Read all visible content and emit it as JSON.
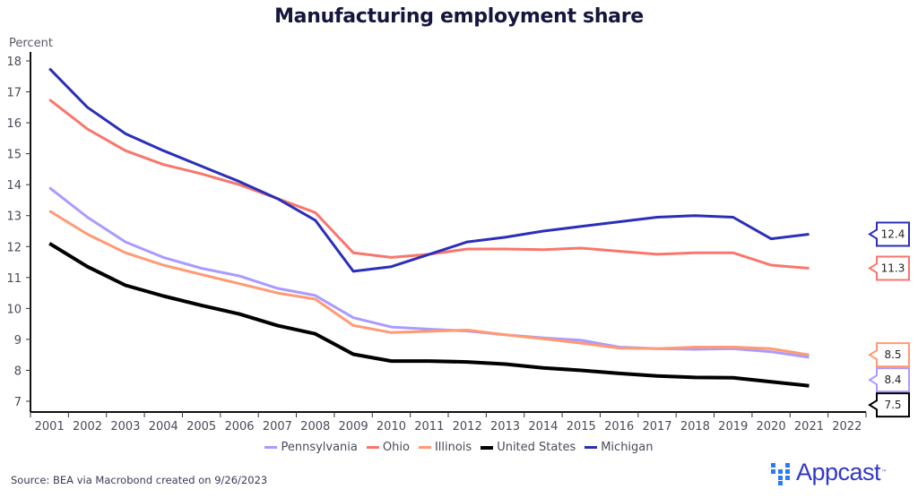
{
  "chart_data": {
    "type": "line",
    "title": "Manufacturing employment share",
    "ylabel": "Percent",
    "xlabel": "",
    "ylim": [
      7,
      18
    ],
    "yticks": [
      7,
      8,
      9,
      10,
      11,
      12,
      13,
      14,
      15,
      16,
      17,
      18
    ],
    "x_tick_labels": [
      "2001",
      "2002",
      "2003",
      "2004",
      "2005",
      "2006",
      "2007",
      "2008",
      "2009",
      "2010",
      "2011",
      "2012",
      "2013",
      "2014",
      "2015",
      "2016",
      "2017",
      "2018",
      "2019",
      "2020",
      "2021",
      "2022"
    ],
    "x": [
      2001,
      2002,
      2003,
      2004,
      2005,
      2006,
      2007,
      2008,
      2009,
      2010,
      2011,
      2012,
      2013,
      2014,
      2015,
      2016,
      2017,
      2018,
      2019,
      2020,
      2021
    ],
    "grid": false,
    "legend_position": "bottom",
    "series": [
      {
        "name": "Pennsylvania",
        "color": "#a99bff",
        "last_label": "8.4",
        "values": [
          13.9,
          12.95,
          12.15,
          11.65,
          11.3,
          11.05,
          10.65,
          10.42,
          9.7,
          9.4,
          9.33,
          9.27,
          9.15,
          9.05,
          8.97,
          8.75,
          8.7,
          8.68,
          8.7,
          8.6,
          8.42
        ]
      },
      {
        "name": "Ohio",
        "color": "#f8766d",
        "last_label": "11.3",
        "values": [
          16.75,
          15.8,
          15.1,
          14.65,
          14.35,
          14.0,
          13.55,
          13.1,
          11.8,
          11.65,
          11.75,
          11.92,
          11.92,
          11.9,
          11.95,
          11.85,
          11.75,
          11.8,
          11.8,
          11.4,
          11.3
        ]
      },
      {
        "name": "Illinois",
        "color": "#ff9a73",
        "last_label": "8.5",
        "values": [
          13.15,
          12.4,
          11.8,
          11.4,
          11.1,
          10.8,
          10.5,
          10.3,
          9.45,
          9.22,
          9.26,
          9.3,
          9.15,
          9.02,
          8.88,
          8.72,
          8.7,
          8.75,
          8.75,
          8.7,
          8.5
        ]
      },
      {
        "name": "United States",
        "color": "#000000",
        "last_label": "7.5",
        "values": [
          12.1,
          11.35,
          10.75,
          10.4,
          10.1,
          9.82,
          9.45,
          9.18,
          8.52,
          8.3,
          8.3,
          8.27,
          8.2,
          8.08,
          8.0,
          7.9,
          7.82,
          7.77,
          7.76,
          7.63,
          7.5
        ]
      },
      {
        "name": "Michigan",
        "color": "#2b2fb8",
        "last_label": "12.4",
        "values": [
          17.75,
          16.5,
          15.65,
          15.1,
          14.6,
          14.1,
          13.55,
          12.85,
          11.2,
          11.35,
          11.75,
          12.15,
          12.3,
          12.5,
          12.65,
          12.8,
          12.95,
          13.0,
          12.95,
          12.25,
          12.4
        ]
      }
    ],
    "callout_order": [
      "Michigan",
      "Ohio",
      "Illinois",
      "Pennsylvania",
      "United States"
    ]
  },
  "footer": {
    "source": "Source: BEA via Macrobond created on 9/26/2023"
  },
  "brand": {
    "name": "Appcast",
    "trademark": "™",
    "color": "#3238c8",
    "icon_color": "#2b7cf3"
  }
}
